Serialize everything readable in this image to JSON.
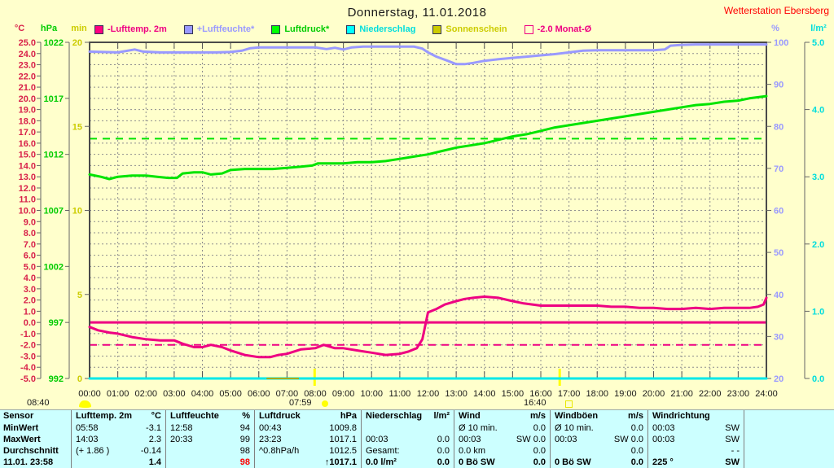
{
  "header": {
    "title": "Donnerstag, 11.01.2018",
    "station": "Wetterstation Ebersberg"
  },
  "legend": [
    {
      "label": "-Lufttemp. 2m",
      "color": "#ee0082",
      "box": "#ff0080",
      "type": "fill"
    },
    {
      "label": "+Luftfeuchte*",
      "color": "#9999ff",
      "box": "#9999ff",
      "type": "fill"
    },
    {
      "label": "Luftdruck*",
      "color": "#00cc00",
      "box": "#00ff00",
      "type": "fill"
    },
    {
      "label": "Niederschlag",
      "color": "#00dddd",
      "box": "#00ffff",
      "type": "fill"
    },
    {
      "label": "Sonnenschein",
      "color": "#cccc00",
      "box": "#cccc00",
      "type": "fill"
    },
    {
      "label": "-2.0 Monat-Ø",
      "color": "#ee0082",
      "box": "none",
      "type": "outline"
    }
  ],
  "chart_data": {
    "type": "line",
    "title": "Donnerstag, 11.01.2018",
    "x_axis": {
      "range": [
        0,
        24
      ],
      "ticks": [
        "00:00",
        "01:00",
        "02:00",
        "03:00",
        "04:00",
        "05:00",
        "06:00",
        "07:00",
        "08:00",
        "09:00",
        "10:00",
        "11:00",
        "12:00",
        "13:00",
        "14:00",
        "15:00",
        "16:00",
        "17:00",
        "18:00",
        "19:00",
        "20:00",
        "21:00",
        "22:00",
        "23:00",
        "24:00"
      ]
    },
    "axes": {
      "temp": {
        "unit": "°C",
        "side": "left",
        "min": -5,
        "max": 25,
        "step": 1,
        "decimals": 1,
        "color": "#d8224a"
      },
      "hpa": {
        "unit": "hPa",
        "side": "left",
        "min": 992,
        "max": 1022,
        "step": 5,
        "decimals": 0,
        "color": "#00cc00"
      },
      "min": {
        "unit": "min",
        "side": "left",
        "min": 0,
        "max": 20,
        "step": 5,
        "decimals": 0,
        "color": "#cccc00"
      },
      "pct": {
        "unit": "%",
        "side": "right",
        "min": 20,
        "max": 100,
        "step": 10,
        "decimals": 0,
        "color": "#9999ff"
      },
      "lm2": {
        "unit": "l/m²",
        "side": "right",
        "min": 0,
        "max": 5,
        "step": 1,
        "decimals": 1,
        "color": "#00dddd"
      }
    },
    "series": [
      {
        "name": "Lufttemp. 2m",
        "axis": "temp",
        "color": "#ee0082",
        "width": 3,
        "points": [
          [
            0,
            -0.4
          ],
          [
            0.3,
            -0.7
          ],
          [
            0.7,
            -0.9
          ],
          [
            1,
            -1.0
          ],
          [
            1.5,
            -1.3
          ],
          [
            2,
            -1.5
          ],
          [
            2.5,
            -1.6
          ],
          [
            3,
            -1.6
          ],
          [
            3.3,
            -1.9
          ],
          [
            3.7,
            -2.2
          ],
          [
            4,
            -2.2
          ],
          [
            4.3,
            -2.0
          ],
          [
            4.7,
            -2.2
          ],
          [
            5,
            -2.5
          ],
          [
            5.5,
            -2.9
          ],
          [
            6,
            -3.1
          ],
          [
            6.4,
            -3.1
          ],
          [
            6.7,
            -2.9
          ],
          [
            7,
            -2.8
          ],
          [
            7.5,
            -2.4
          ],
          [
            8,
            -2.3
          ],
          [
            8.3,
            -2.0
          ],
          [
            8.7,
            -2.3
          ],
          [
            9,
            -2.3
          ],
          [
            9.5,
            -2.5
          ],
          [
            10,
            -2.7
          ],
          [
            10.5,
            -2.9
          ],
          [
            11,
            -2.8
          ],
          [
            11.3,
            -2.6
          ],
          [
            11.6,
            -2.3
          ],
          [
            11.8,
            -1.5
          ],
          [
            12,
            0.9
          ],
          [
            12.3,
            1.2
          ],
          [
            12.6,
            1.6
          ],
          [
            13,
            1.9
          ],
          [
            13.3,
            2.1
          ],
          [
            13.6,
            2.2
          ],
          [
            14,
            2.3
          ],
          [
            14.5,
            2.2
          ],
          [
            15,
            1.9
          ],
          [
            15.4,
            1.7
          ],
          [
            16,
            1.5
          ],
          [
            16.5,
            1.5
          ],
          [
            17,
            1.5
          ],
          [
            17.5,
            1.5
          ],
          [
            18,
            1.5
          ],
          [
            18.5,
            1.4
          ],
          [
            19,
            1.4
          ],
          [
            19.5,
            1.3
          ],
          [
            20,
            1.3
          ],
          [
            20.5,
            1.2
          ],
          [
            21,
            1.2
          ],
          [
            21.5,
            1.3
          ],
          [
            22,
            1.2
          ],
          [
            22.5,
            1.3
          ],
          [
            23,
            1.3
          ],
          [
            23.4,
            1.3
          ],
          [
            23.7,
            1.4
          ],
          [
            23.9,
            1.6
          ],
          [
            24,
            2.2
          ]
        ]
      },
      {
        "name": "Luftfeuchte",
        "axis": "pct",
        "color": "#9999ff",
        "width": 3,
        "points": [
          [
            0,
            97.8
          ],
          [
            0.5,
            97.7
          ],
          [
            1,
            97.6
          ],
          [
            1.6,
            98.3
          ],
          [
            1.9,
            97.8
          ],
          [
            2.5,
            97.6
          ],
          [
            3,
            97.6
          ],
          [
            3.5,
            97.6
          ],
          [
            4,
            97.6
          ],
          [
            4.5,
            97.6
          ],
          [
            5,
            97.7
          ],
          [
            5.4,
            98.0
          ],
          [
            5.7,
            98.6
          ],
          [
            6,
            98.8
          ],
          [
            6.5,
            98.8
          ],
          [
            7,
            98.8
          ],
          [
            7.5,
            98.8
          ],
          [
            8,
            98.8
          ],
          [
            8.4,
            98.4
          ],
          [
            8.7,
            98.7
          ],
          [
            9,
            98.3
          ],
          [
            9.3,
            98.8
          ],
          [
            9.7,
            99.0
          ],
          [
            10,
            99.0
          ],
          [
            10.5,
            99.0
          ],
          [
            11,
            99.0
          ],
          [
            11.5,
            99.0
          ],
          [
            11.8,
            98.5
          ],
          [
            12,
            97.6
          ],
          [
            12.3,
            96.6
          ],
          [
            12.7,
            95.6
          ],
          [
            13,
            94.8
          ],
          [
            13.3,
            94.8
          ],
          [
            13.6,
            95.1
          ],
          [
            14,
            95.6
          ],
          [
            14.5,
            96.0
          ],
          [
            15,
            96.3
          ],
          [
            15.5,
            96.6
          ],
          [
            16,
            96.9
          ],
          [
            16.5,
            97.2
          ],
          [
            17,
            97.6
          ],
          [
            17.5,
            98.0
          ],
          [
            18,
            98.1
          ],
          [
            18.5,
            98.1
          ],
          [
            19,
            98.1
          ],
          [
            19.5,
            98.1
          ],
          [
            20,
            98.1
          ],
          [
            20.4,
            98.3
          ],
          [
            20.6,
            99.2
          ],
          [
            21,
            99.4
          ],
          [
            21.5,
            99.5
          ],
          [
            22,
            99.5
          ],
          [
            22.5,
            99.5
          ],
          [
            23,
            99.5
          ],
          [
            23.5,
            99.5
          ],
          [
            24,
            99.5
          ]
        ]
      },
      {
        "name": "Luftdruck",
        "axis": "hpa",
        "color": "#00e400",
        "width": 3,
        "points": [
          [
            0,
            1010.2
          ],
          [
            0.4,
            1010.0
          ],
          [
            0.7,
            1009.8
          ],
          [
            1,
            1010.0
          ],
          [
            1.5,
            1010.1
          ],
          [
            2,
            1010.1
          ],
          [
            2.4,
            1010.0
          ],
          [
            2.8,
            1009.9
          ],
          [
            3.1,
            1009.9
          ],
          [
            3.3,
            1010.3
          ],
          [
            3.7,
            1010.4
          ],
          [
            4,
            1010.4
          ],
          [
            4.3,
            1010.2
          ],
          [
            4.7,
            1010.3
          ],
          [
            5,
            1010.6
          ],
          [
            5.5,
            1010.7
          ],
          [
            6,
            1010.7
          ],
          [
            6.5,
            1010.7
          ],
          [
            7,
            1010.8
          ],
          [
            7.5,
            1010.9
          ],
          [
            7.9,
            1011.0
          ],
          [
            8.1,
            1011.2
          ],
          [
            8.5,
            1011.2
          ],
          [
            9,
            1011.2
          ],
          [
            9.5,
            1011.3
          ],
          [
            10,
            1011.3
          ],
          [
            10.5,
            1011.4
          ],
          [
            11,
            1011.6
          ],
          [
            11.5,
            1011.8
          ],
          [
            12,
            1012.0
          ],
          [
            12.5,
            1012.3
          ],
          [
            13,
            1012.6
          ],
          [
            13.5,
            1012.8
          ],
          [
            14,
            1013.0
          ],
          [
            14.5,
            1013.3
          ],
          [
            15,
            1013.6
          ],
          [
            15.5,
            1013.8
          ],
          [
            16,
            1014.1
          ],
          [
            16.5,
            1014.4
          ],
          [
            17,
            1014.6
          ],
          [
            17.5,
            1014.8
          ],
          [
            18,
            1015.0
          ],
          [
            18.5,
            1015.2
          ],
          [
            19,
            1015.4
          ],
          [
            19.5,
            1015.6
          ],
          [
            20,
            1015.8
          ],
          [
            20.5,
            1016.0
          ],
          [
            21,
            1016.2
          ],
          [
            21.5,
            1016.4
          ],
          [
            22,
            1016.5
          ],
          [
            22.5,
            1016.7
          ],
          [
            23,
            1016.8
          ],
          [
            23.4,
            1017.0
          ],
          [
            24,
            1017.2
          ]
        ]
      },
      {
        "name": "Niederschlag",
        "axis": "lm2",
        "color": "#00e8e8",
        "width": 3,
        "points": [
          [
            0,
            0
          ],
          [
            24,
            0
          ]
        ]
      },
      {
        "name": "Sonnenschein",
        "axis": "min",
        "color": "#aaaa00",
        "width": 2,
        "points": [
          [
            6.3,
            0
          ],
          [
            7.4,
            0
          ]
        ]
      }
    ],
    "reference_lines": [
      {
        "name": "Null-Grad-Linie",
        "axis": "temp",
        "value": 0.0,
        "style": "solid",
        "color": "#ee0082",
        "width": 3
      },
      {
        "name": "Monat-Durchschnitt Lufttemp. -2.0",
        "axis": "temp",
        "value": -2.0,
        "style": "dashed",
        "color": "#ee0082",
        "width": 2
      },
      {
        "name": "Monat-Durchschnitt Luftdruck",
        "axis": "hpa",
        "value": 1013.4,
        "style": "dashed",
        "color": "#00e400",
        "width": 2
      }
    ],
    "sun_markers": {
      "moon_label": "08:40",
      "sunrise": "07:59",
      "sunset": "16:40",
      "sunrise_hour": 7.98,
      "sunset_hour": 16.67
    }
  },
  "table": {
    "row_labels": [
      "Sensor",
      "MinWert",
      "MaxWert",
      "Durchschnitt",
      "11.01. 23:58"
    ],
    "columns": [
      {
        "header": "Lufttemp. 2m",
        "unit": "°C",
        "rows": [
          [
            "05:58",
            "-3.1"
          ],
          [
            "14:03",
            "2.3"
          ],
          [
            "(+ 1.86 )",
            "-0.14"
          ],
          [
            "",
            "1.4"
          ]
        ]
      },
      {
        "header": "Luftfeuchte",
        "unit": "%",
        "rows": [
          [
            "12:58",
            "94"
          ],
          [
            "20:33",
            "99"
          ],
          [
            "",
            "98"
          ],
          [
            "",
            "98",
            "red"
          ]
        ]
      },
      {
        "header": "Luftdruck",
        "unit": "hPa",
        "rows": [
          [
            "00:43",
            "1009.8"
          ],
          [
            "23:23",
            "1017.1"
          ],
          [
            "^0.8hPa/h",
            "1012.5"
          ],
          [
            "",
            "↑1017.1"
          ]
        ]
      },
      {
        "header": "Niederschlag",
        "unit": "l/m²",
        "rows": [
          [
            "",
            ""
          ],
          [
            "00:03",
            "0.0"
          ],
          [
            "Gesamt:",
            "0.0"
          ],
          [
            "0.0 l/m²",
            "0.0"
          ]
        ]
      },
      {
        "header": "Wind",
        "unit": "m/s",
        "rows": [
          [
            "Ø 10 min.",
            "0.0"
          ],
          [
            "00:03",
            "SW 0.0"
          ],
          [
            "0.0 km",
            "0.0"
          ],
          [
            "0 Bö SW",
            "0.0"
          ]
        ]
      },
      {
        "header": "Windböen",
        "unit": "m/s",
        "rows": [
          [
            "Ø 10 min.",
            "0.0"
          ],
          [
            "00:03",
            "SW 0.0"
          ],
          [
            "",
            "0.0"
          ],
          [
            "0 Bö SW",
            "0.0"
          ]
        ]
      },
      {
        "header": "Windrichtung",
        "unit": "",
        "rows": [
          [
            "00:03",
            "SW"
          ],
          [
            "00:03",
            "SW"
          ],
          [
            "",
            "- -"
          ],
          [
            "225 °",
            "SW"
          ]
        ]
      },
      {
        "header": "",
        "unit": "",
        "rows": [
          [
            "",
            ""
          ],
          [
            "",
            ""
          ],
          [
            "",
            ""
          ],
          [
            "",
            ""
          ]
        ]
      }
    ]
  }
}
